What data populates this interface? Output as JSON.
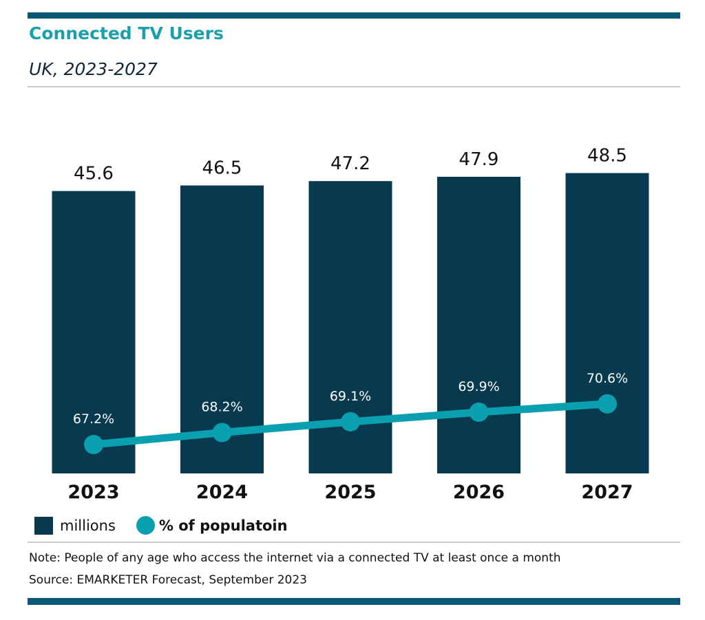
{
  "colors": {
    "bar": "#073a4e",
    "line": "#0aa0b0",
    "title": "#1a9fab",
    "accent_bar": "#0b5876"
  },
  "chart_data": {
    "type": "bar+line",
    "title": "Connected TV Users",
    "subtitle": "UK, 2023-2027",
    "categories": [
      "2023",
      "2024",
      "2025",
      "2026",
      "2027"
    ],
    "series": [
      {
        "name": "millions",
        "type": "bar",
        "values": [
          45.6,
          46.5,
          47.2,
          47.9,
          48.5
        ],
        "labels": [
          "45.6",
          "46.5",
          "47.2",
          "47.9",
          "48.5"
        ]
      },
      {
        "name": "% of populatoin",
        "type": "line",
        "values": [
          67.2,
          68.2,
          69.1,
          69.9,
          70.6
        ],
        "labels": [
          "67.2%",
          "68.2%",
          "69.1%",
          "69.9%",
          "70.6%"
        ]
      }
    ],
    "grid": false,
    "legend": "bottom-left"
  },
  "note": "Note: People of any age who access the internet via a connected TV at least once a month",
  "source": "Source: EMARKETER Forecast, September 2023"
}
